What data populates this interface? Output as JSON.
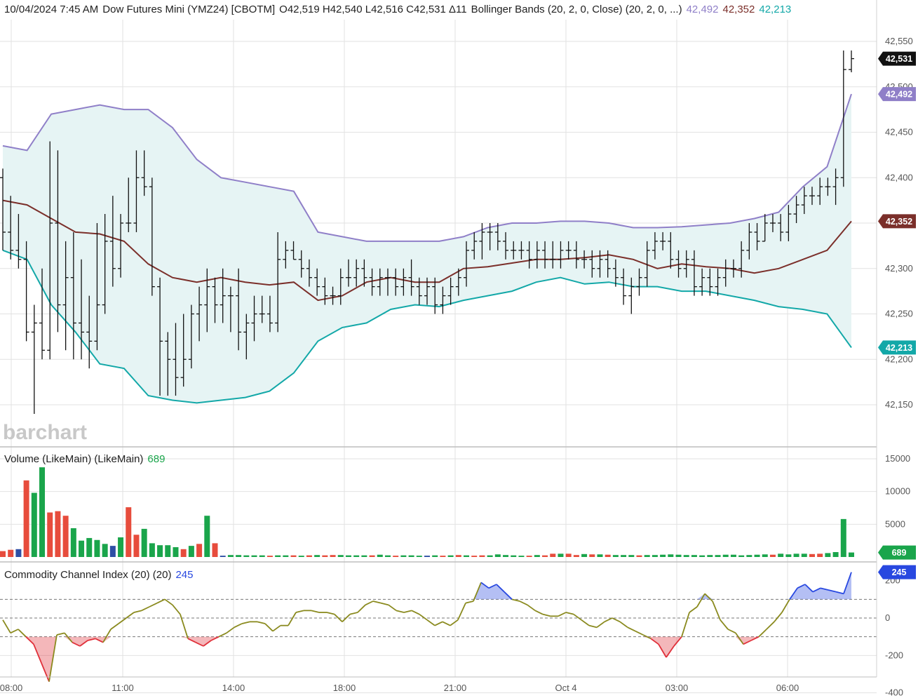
{
  "header": {
    "datetime": "10/04/2024 7:45 AM",
    "symbol": "Dow Futures Mini (YMZ24) [CBOTM]",
    "ohlc": "O42,519 H42,540 L42,516 C42,531 Δ11",
    "study": "Bollinger Bands (20, 2, 0, Close)  (20, 2, 0, ...)",
    "upper_value": "42,492",
    "middle_value": "42,352",
    "lower_value": "42,213"
  },
  "colors": {
    "price_tag": "#111111",
    "upper_band": "#8f7fc8",
    "middle_band": "#7b2f2a",
    "lower_band": "#13a8a8",
    "band_fill": "#e6f4f4",
    "volume_up": "#1aa54b",
    "volume_down": "#e74c3c",
    "volume_flat": "#2e4fa5",
    "cci_line": "#8a8a1e",
    "cci_pos": "#2848e0",
    "cci_neg": "#e0303a",
    "grid": "#e2e2e2",
    "divider": "#bdbdbd"
  },
  "price_tags": {
    "last": "42,531",
    "upper": "42,492",
    "middle": "42,352",
    "lower": "42,213"
  },
  "watermark": "barchart",
  "volume_panel": {
    "title": "Volume (LikeMain)  (LikeMain)",
    "value": "689",
    "tag": "689"
  },
  "cci_panel": {
    "title": "Commodity Channel Index (20)  (20)",
    "value": "245",
    "tag": "245"
  },
  "axes": {
    "price_ticks": [
      "42,550",
      "42,500",
      "42,450",
      "42,400",
      "42,300",
      "42,250",
      "42,200",
      "42,150"
    ],
    "volume_ticks": [
      "15000",
      "10000",
      "5000"
    ],
    "cci_ticks": [
      "200",
      "0",
      "-200",
      "-400"
    ],
    "time_labels": [
      "08:00",
      "11:00",
      "14:00",
      "18:00",
      "21:00",
      "Oct 4",
      "03:00",
      "06:00"
    ]
  },
  "chart_data": [
    {
      "type": "ohlc",
      "title": "Dow Futures Mini (YMZ24) [CBOTM]",
      "ylim": [
        42110,
        42570
      ],
      "candles": [
        [
          42400,
          42410,
          42320,
          42340
        ],
        [
          42340,
          42380,
          42310,
          42320
        ],
        [
          42320,
          42360,
          42300,
          42310
        ],
        [
          42310,
          42330,
          42220,
          42230
        ],
        [
          42230,
          42260,
          42140,
          42240
        ],
        [
          42240,
          42300,
          42200,
          42210
        ],
        [
          42210,
          42440,
          42200,
          42350
        ],
        [
          42350,
          42430,
          42230,
          42260
        ],
        [
          42260,
          42330,
          42210,
          42290
        ],
        [
          42290,
          42340,
          42200,
          42240
        ],
        [
          42240,
          42310,
          42200,
          42230
        ],
        [
          42230,
          42270,
          42190,
          42220
        ],
        [
          42220,
          42350,
          42210,
          42260
        ],
        [
          42260,
          42360,
          42250,
          42330
        ],
        [
          42330,
          42380,
          42280,
          42300
        ],
        [
          42300,
          42360,
          42290,
          42350
        ],
        [
          42350,
          42400,
          42340,
          42350
        ],
        [
          42350,
          42430,
          42340,
          42400
        ],
        [
          42400,
          42430,
          42380,
          42390
        ],
        [
          42390,
          42400,
          42270,
          42280
        ],
        [
          42280,
          42290,
          42160,
          42220
        ],
        [
          42220,
          42230,
          42160,
          42200
        ],
        [
          42200,
          42240,
          42160,
          42180
        ],
        [
          42180,
          42250,
          42170,
          42200
        ],
        [
          42200,
          42260,
          42190,
          42250
        ],
        [
          42250,
          42280,
          42220,
          42260
        ],
        [
          42260,
          42300,
          42230,
          42280
        ],
        [
          42280,
          42290,
          42240,
          42260
        ],
        [
          42260,
          42300,
          42240,
          42270
        ],
        [
          42270,
          42280,
          42230,
          42270
        ],
        [
          42270,
          42300,
          42210,
          42230
        ],
        [
          42230,
          42250,
          42200,
          42240
        ],
        [
          42240,
          42270,
          42220,
          42250
        ],
        [
          42250,
          42270,
          42240,
          42250
        ],
        [
          42250,
          42270,
          42230,
          42240
        ],
        [
          42240,
          42340,
          42230,
          42310
        ],
        [
          42310,
          42330,
          42300,
          42320
        ],
        [
          42320,
          42330,
          42310,
          42310
        ],
        [
          42310,
          42320,
          42290,
          42300
        ],
        [
          42300,
          42310,
          42280,
          42290
        ],
        [
          42290,
          42300,
          42270,
          42280
        ],
        [
          42280,
          42290,
          42260,
          42270
        ],
        [
          42270,
          42280,
          42260,
          42270
        ],
        [
          42270,
          42300,
          42260,
          42290
        ],
        [
          42290,
          42310,
          42280,
          42290
        ],
        [
          42290,
          42310,
          42280,
          42300
        ],
        [
          42300,
          42310,
          42280,
          42290
        ],
        [
          42290,
          42300,
          42270,
          42280
        ],
        [
          42280,
          42300,
          42270,
          42290
        ],
        [
          42290,
          42300,
          42270,
          42290
        ],
        [
          42290,
          42300,
          42270,
          42280
        ],
        [
          42280,
          42300,
          42270,
          42290
        ],
        [
          42290,
          42310,
          42270,
          42280
        ],
        [
          42280,
          42290,
          42260,
          42270
        ],
        [
          42270,
          42290,
          42260,
          42280
        ],
        [
          42280,
          42290,
          42250,
          42260
        ],
        [
          42260,
          42280,
          42250,
          42270
        ],
        [
          42270,
          42290,
          42260,
          42280
        ],
        [
          42280,
          42300,
          42270,
          42290
        ],
        [
          42290,
          42330,
          42280,
          42320
        ],
        [
          42320,
          42340,
          42310,
          42330
        ],
        [
          42330,
          42350,
          42310,
          42340
        ],
        [
          42340,
          42350,
          42320,
          42340
        ],
        [
          42340,
          42350,
          42320,
          42330
        ],
        [
          42330,
          42340,
          42310,
          42320
        ],
        [
          42320,
          42330,
          42310,
          42320
        ],
        [
          42320,
          42330,
          42310,
          42320
        ],
        [
          42320,
          42330,
          42300,
          42310
        ],
        [
          42310,
          42330,
          42300,
          42320
        ],
        [
          42320,
          42330,
          42300,
          42310
        ],
        [
          42310,
          42330,
          42300,
          42310
        ],
        [
          42310,
          42330,
          42300,
          42320
        ],
        [
          42320,
          42330,
          42310,
          42320
        ],
        [
          42320,
          42330,
          42300,
          42310
        ],
        [
          42310,
          42320,
          42300,
          42310
        ],
        [
          42310,
          42320,
          42290,
          42300
        ],
        [
          42300,
          42320,
          42290,
          42310
        ],
        [
          42310,
          42320,
          42290,
          42300
        ],
        [
          42300,
          42310,
          42280,
          42290
        ],
        [
          42290,
          42300,
          42260,
          42270
        ],
        [
          42270,
          42290,
          42250,
          42280
        ],
        [
          42280,
          42300,
          42270,
          42290
        ],
        [
          42290,
          42330,
          42280,
          42320
        ],
        [
          42320,
          42340,
          42310,
          42330
        ],
        [
          42330,
          42340,
          42320,
          42330
        ],
        [
          42330,
          42340,
          42300,
          42310
        ],
        [
          42310,
          42320,
          42290,
          42300
        ],
        [
          42300,
          42320,
          42290,
          42310
        ],
        [
          42310,
          42320,
          42270,
          42280
        ],
        [
          42280,
          42300,
          42270,
          42290
        ],
        [
          42290,
          42300,
          42270,
          42280
        ],
        [
          42280,
          42300,
          42270,
          42290
        ],
        [
          42290,
          42310,
          42280,
          42300
        ],
        [
          42300,
          42310,
          42290,
          42300
        ],
        [
          42300,
          42330,
          42290,
          42320
        ],
        [
          42320,
          42350,
          42310,
          42340
        ],
        [
          42340,
          42350,
          42320,
          42330
        ],
        [
          42330,
          42360,
          42330,
          42350
        ],
        [
          42350,
          42360,
          42340,
          42350
        ],
        [
          42350,
          42360,
          42330,
          42340
        ],
        [
          42340,
          42370,
          42330,
          42360
        ],
        [
          42360,
          42380,
          42350,
          42370
        ],
        [
          42370,
          42390,
          42360,
          42380
        ],
        [
          42380,
          42390,
          42370,
          42380
        ],
        [
          42380,
          42400,
          42370,
          42390
        ],
        [
          42390,
          42400,
          42380,
          42390
        ],
        [
          42390,
          42410,
          42370,
          42400
        ],
        [
          42400,
          42540,
          42390,
          42519
        ],
        [
          42519,
          42540,
          42516,
          42531
        ]
      ],
      "bollinger": {
        "upper": [
          42435,
          42430,
          42470,
          42475,
          42480,
          42475,
          42475,
          42455,
          42420,
          42400,
          42395,
          42390,
          42385,
          42340,
          42335,
          42330,
          42330,
          42330,
          42330,
          42335,
          42345,
          42350,
          42350,
          42352,
          42352,
          42350,
          42345,
          42345,
          42346,
          42348,
          42350,
          42355,
          42362,
          42390,
          42412,
          42492
        ],
        "middle": [
          42375,
          42370,
          42355,
          42340,
          42338,
          42330,
          42305,
          42290,
          42285,
          42290,
          42285,
          42282,
          42285,
          42265,
          42270,
          42285,
          42290,
          42285,
          42285,
          42300,
          42302,
          42306,
          42310,
          42310,
          42312,
          42315,
          42310,
          42300,
          42305,
          42302,
          42300,
          42295,
          42300,
          42310,
          42320,
          42352
        ],
        "lower": [
          42320,
          42310,
          42260,
          42230,
          42195,
          42190,
          42160,
          42155,
          42152,
          42155,
          42158,
          42165,
          42185,
          42220,
          42235,
          42240,
          42255,
          42260,
          42258,
          42265,
          42270,
          42275,
          42285,
          42290,
          42283,
          42285,
          42280,
          42280,
          42275,
          42275,
          42270,
          42265,
          42258,
          42255,
          42250,
          42213
        ]
      }
    },
    {
      "type": "bar",
      "title": "Volume (LikeMain)",
      "ylim": [
        0,
        16000
      ],
      "values": [
        900,
        1100,
        1200,
        11700,
        9800,
        13700,
        6800,
        7000,
        6300,
        4400,
        2500,
        2900,
        2600,
        2000,
        1700,
        3000,
        7600,
        3400,
        4300,
        2100,
        1800,
        1800,
        1500,
        1200,
        1700,
        2000,
        6300,
        2100,
        200,
        300,
        300,
        250,
        250,
        250,
        200,
        250,
        250,
        250,
        200,
        250,
        300,
        250,
        300,
        300,
        250,
        250,
        250,
        250,
        350,
        250,
        200,
        250,
        250,
        200,
        200,
        250,
        200,
        250,
        300,
        250,
        200,
        250,
        250,
        400,
        300,
        250,
        200,
        200,
        300,
        250,
        500,
        500,
        500,
        300,
        450,
        400,
        400,
        350,
        300,
        300,
        300,
        250,
        300,
        300,
        350,
        400,
        350,
        300,
        300,
        250,
        300,
        300,
        350,
        350,
        250,
        300,
        350,
        400,
        350,
        500,
        400,
        500,
        500,
        450,
        500,
        600,
        750,
        5800,
        689
      ],
      "colors": [
        "down",
        "down",
        "flat",
        "down",
        "up",
        "up",
        "down",
        "down",
        "down",
        "up",
        "up",
        "up",
        "up",
        "up",
        "flat",
        "up",
        "down",
        "down",
        "up",
        "up",
        "up",
        "up",
        "up",
        "down",
        "up",
        "down",
        "up",
        "down",
        "flat",
        "up",
        "up",
        "up",
        "up",
        "up",
        "down",
        "up",
        "up",
        "down",
        "up",
        "down",
        "up",
        "down",
        "down",
        "up",
        "up",
        "up",
        "up",
        "down",
        "up",
        "up",
        "down",
        "up",
        "up",
        "up",
        "flat",
        "up",
        "down",
        "up",
        "down",
        "up",
        "down",
        "down",
        "up",
        "up",
        "up",
        "up",
        "up",
        "down",
        "up",
        "down",
        "down",
        "up",
        "down",
        "down",
        "up",
        "down",
        "up",
        "down",
        "up",
        "up",
        "up",
        "down",
        "up",
        "up",
        "up",
        "up",
        "up",
        "up",
        "up",
        "up",
        "up",
        "up",
        "up",
        "up",
        "up",
        "up",
        "up",
        "up",
        "down",
        "up",
        "up",
        "up",
        "up",
        "down",
        "down",
        "up",
        "up",
        "up",
        "up"
      ]
    },
    {
      "type": "line",
      "title": "Commodity Channel Index (20)",
      "ylim": [
        -400,
        280
      ],
      "levels": [
        100,
        0,
        -100
      ],
      "values": [
        -10,
        -80,
        -60,
        -100,
        -140,
        -240,
        -340,
        -90,
        -80,
        -130,
        -150,
        -120,
        -110,
        -130,
        -60,
        -30,
        0,
        30,
        40,
        60,
        80,
        100,
        70,
        20,
        -110,
        -130,
        -150,
        -120,
        -100,
        -80,
        -50,
        -30,
        -20,
        -20,
        -30,
        -70,
        -40,
        -40,
        30,
        40,
        40,
        30,
        30,
        20,
        -20,
        20,
        30,
        70,
        90,
        80,
        70,
        40,
        30,
        40,
        20,
        -10,
        -40,
        -20,
        -40,
        -10,
        80,
        90,
        190,
        160,
        180,
        140,
        100,
        90,
        70,
        40,
        20,
        10,
        10,
        30,
        20,
        -10,
        -40,
        -50,
        -20,
        0,
        -20,
        -50,
        -70,
        -90,
        -110,
        -140,
        -210,
        -150,
        -100,
        30,
        60,
        130,
        90,
        -10,
        -60,
        -80,
        -140,
        -120,
        -100,
        -60,
        -20,
        30,
        100,
        160,
        180,
        140,
        160,
        150,
        140,
        130,
        245
      ]
    }
  ]
}
